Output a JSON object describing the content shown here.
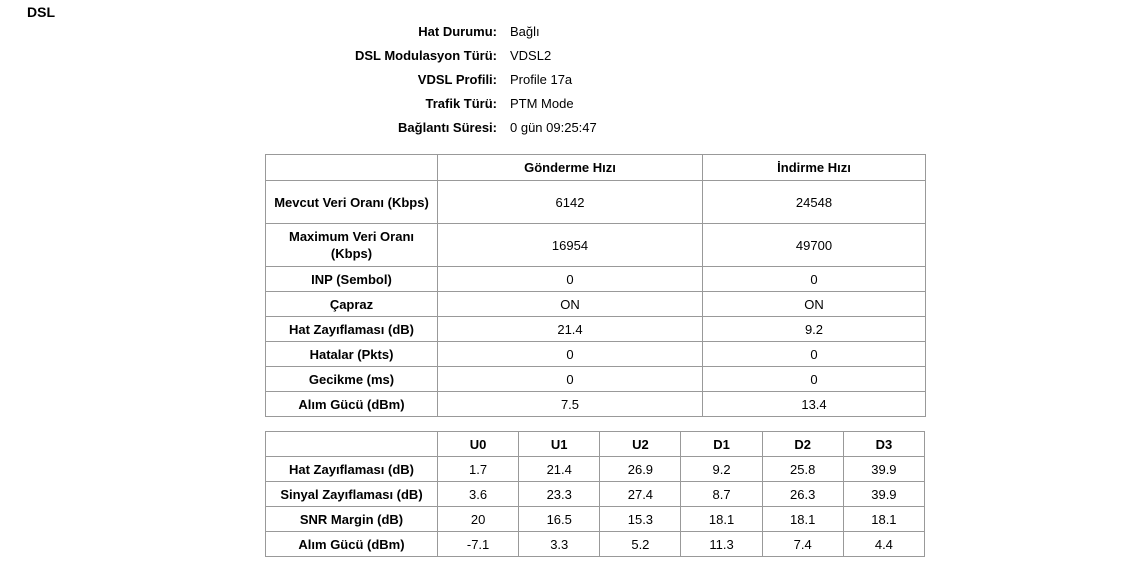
{
  "page": {
    "title": "DSL"
  },
  "info": {
    "items": [
      {
        "label": "Hat Durumu:",
        "value": "Bağlı"
      },
      {
        "label": "DSL Modulasyon Türü:",
        "value": "VDSL2"
      },
      {
        "label": "VDSL Profili:",
        "value": "Profile 17a"
      },
      {
        "label": "Trafik Türü:",
        "value": "PTM Mode"
      },
      {
        "label": "Bağlantı Süresi:",
        "value": "0 gün 09:25:47"
      }
    ]
  },
  "rate_table": {
    "headers": [
      "",
      "Gönderme Hızı",
      "İndirme Hızı"
    ],
    "rows": [
      {
        "label": "Mevcut Veri Oranı (Kbps)",
        "values": [
          "6142",
          "24548"
        ]
      },
      {
        "label": "Maximum Veri Oranı (Kbps)",
        "values": [
          "16954",
          "49700"
        ]
      },
      {
        "label": "INP (Sembol)",
        "values": [
          "0",
          "0"
        ]
      },
      {
        "label": "Çapraz",
        "values": [
          "ON",
          "ON"
        ]
      },
      {
        "label": "Hat Zayıflaması (dB)",
        "values": [
          "21.4",
          "9.2"
        ]
      },
      {
        "label": "Hatalar (Pkts)",
        "values": [
          "0",
          "0"
        ]
      },
      {
        "label": "Gecikme (ms)",
        "values": [
          "0",
          "0"
        ]
      },
      {
        "label": "Alım Gücü (dBm)",
        "values": [
          "7.5",
          "13.4"
        ]
      }
    ]
  },
  "band_table": {
    "headers": [
      "",
      "U0",
      "U1",
      "U2",
      "D1",
      "D2",
      "D3"
    ],
    "rows": [
      {
        "label": "Hat Zayıflaması (dB)",
        "values": [
          "1.7",
          "21.4",
          "26.9",
          "9.2",
          "25.8",
          "39.9"
        ]
      },
      {
        "label": "Sinyal Zayıflaması (dB)",
        "values": [
          "3.6",
          "23.3",
          "27.4",
          "8.7",
          "26.3",
          "39.9"
        ]
      },
      {
        "label": "SNR Margin (dB)",
        "values": [
          "20",
          "16.5",
          "15.3",
          "18.1",
          "18.1",
          "18.1"
        ]
      },
      {
        "label": "Alım Gücü (dBm)",
        "values": [
          "-7.1",
          "3.3",
          "5.2",
          "11.3",
          "7.4",
          "4.4"
        ]
      }
    ]
  },
  "colors": {
    "background": "#ffffff",
    "text": "#000000",
    "table_border": "#999999"
  }
}
